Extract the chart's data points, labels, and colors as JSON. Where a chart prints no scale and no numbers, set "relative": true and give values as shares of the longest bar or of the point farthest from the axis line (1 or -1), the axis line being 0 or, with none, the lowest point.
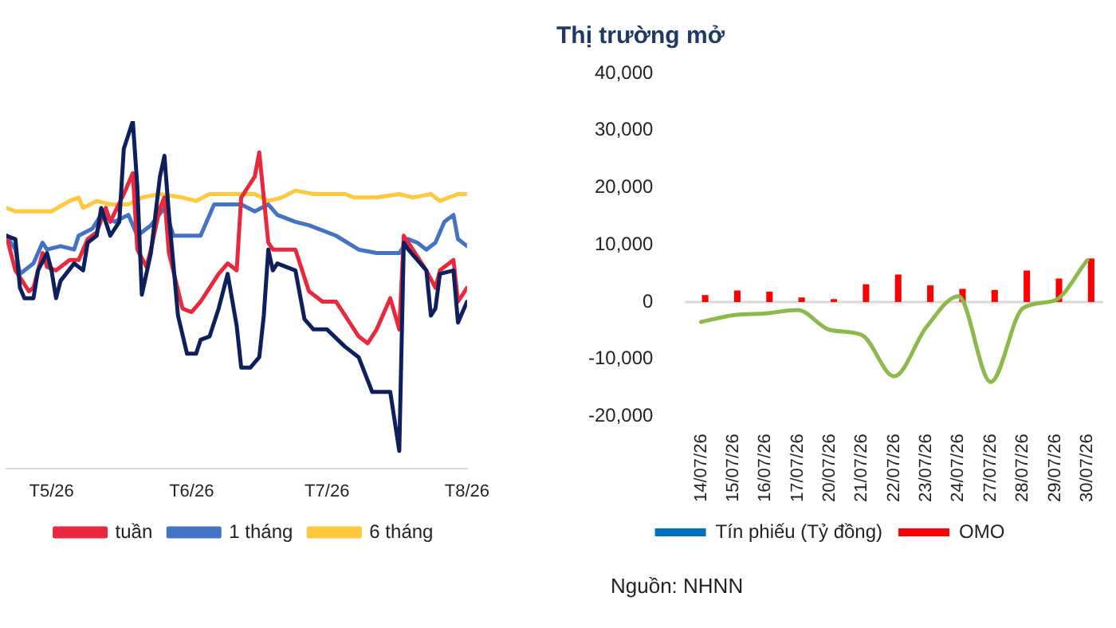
{
  "chart_data": [
    {
      "type": "line",
      "relative": true,
      "xlim": [
        "2026-04-21",
        "2026-08-01"
      ],
      "xticks": [
        {
          "value": "2026-05-01",
          "label": "T5/26"
        },
        {
          "value": "2026-06-01",
          "label": "T6/26"
        },
        {
          "value": "2026-07-01",
          "label": "T7/26"
        },
        {
          "value": "2026-08-01",
          "label": "T8/26"
        }
      ],
      "grid": false,
      "legend": "bottom",
      "marker": "none",
      "line_style": "solid",
      "series": [
        {
          "color": "#0d1f5c",
          "x": [
            "2026-04-21",
            "2026-04-23",
            "2026-04-24",
            "2026-04-25",
            "2026-04-27",
            "2026-04-28",
            "2026-04-30",
            "2026-05-01",
            "2026-05-02",
            "2026-05-03",
            "2026-05-06",
            "2026-05-08",
            "2026-05-09",
            "2026-05-11",
            "2026-05-12",
            "2026-05-14",
            "2026-05-16",
            "2026-05-17",
            "2026-05-19",
            "2026-05-20",
            "2026-05-21",
            "2026-05-23",
            "2026-05-25",
            "2026-05-26",
            "2026-05-27",
            "2026-05-29",
            "2026-05-31",
            "2026-06-02",
            "2026-06-03",
            "2026-06-05",
            "2026-06-07",
            "2026-06-09",
            "2026-06-11",
            "2026-06-12",
            "2026-06-14",
            "2026-06-16",
            "2026-06-17",
            "2026-06-18",
            "2026-06-19",
            "2026-06-20",
            "2026-06-24",
            "2026-06-26",
            "2026-06-28",
            "2026-07-01",
            "2026-07-05",
            "2026-07-08",
            "2026-07-11",
            "2026-07-15",
            "2026-07-17",
            "2026-07-18",
            "2026-07-19",
            "2026-07-23",
            "2026-07-24",
            "2026-07-25",
            "2026-07-26",
            "2026-07-29",
            "2026-07-30",
            "2026-08-01"
          ],
          "values": [
            0.67,
            0.66,
            0.52,
            0.49,
            0.49,
            0.57,
            0.62,
            0.57,
            0.49,
            0.54,
            0.59,
            0.57,
            0.65,
            0.67,
            0.75,
            0.67,
            0.71,
            0.92,
            1.0,
            0.81,
            0.5,
            0.62,
            0.84,
            0.9,
            0.73,
            0.44,
            0.33,
            0.33,
            0.37,
            0.38,
            0.46,
            0.56,
            0.41,
            0.29,
            0.29,
            0.32,
            0.44,
            0.63,
            0.57,
            0.59,
            0.57,
            0.43,
            0.4,
            0.4,
            0.35,
            0.32,
            0.22,
            0.22,
            0.05,
            0.65,
            0.63,
            0.57,
            0.44,
            0.46,
            0.56,
            0.57,
            0.42,
            0.48
          ]
        },
        {
          "name": "tuần",
          "color": "#e8283c",
          "x": [
            "2026-04-21",
            "2026-04-23",
            "2026-04-26",
            "2026-04-27",
            "2026-04-29",
            "2026-04-30",
            "2026-05-02",
            "2026-05-05",
            "2026-05-07",
            "2026-05-09",
            "2026-05-11",
            "2026-05-13",
            "2026-05-14",
            "2026-05-17",
            "2026-05-19",
            "2026-05-20",
            "2026-05-22",
            "2026-05-23",
            "2026-05-25",
            "2026-05-26",
            "2026-05-27",
            "2026-05-30",
            "2026-06-01",
            "2026-06-03",
            "2026-06-07",
            "2026-06-09",
            "2026-06-11",
            "2026-06-12",
            "2026-06-15",
            "2026-06-16",
            "2026-06-18",
            "2026-06-19",
            "2026-06-21",
            "2026-06-24",
            "2026-06-27",
            "2026-06-30",
            "2026-07-03",
            "2026-07-05",
            "2026-07-08",
            "2026-07-10",
            "2026-07-12",
            "2026-07-15",
            "2026-07-17",
            "2026-07-18",
            "2026-07-20",
            "2026-07-23",
            "2026-07-25",
            "2026-07-26",
            "2026-07-29",
            "2026-07-30",
            "2026-08-01"
          ],
          "values": [
            0.67,
            0.57,
            0.51,
            0.52,
            0.62,
            0.58,
            0.57,
            0.6,
            0.6,
            0.66,
            0.68,
            0.75,
            0.71,
            0.79,
            0.85,
            0.63,
            0.58,
            0.63,
            0.75,
            0.78,
            0.62,
            0.46,
            0.45,
            0.48,
            0.56,
            0.59,
            0.57,
            0.78,
            0.84,
            0.91,
            0.65,
            0.63,
            0.63,
            0.63,
            0.51,
            0.48,
            0.48,
            0.44,
            0.38,
            0.36,
            0.4,
            0.49,
            0.4,
            0.67,
            0.63,
            0.57,
            0.52,
            0.57,
            0.6,
            0.48,
            0.52
          ]
        },
        {
          "name": "1 tháng",
          "color": "#4472c4",
          "x": [
            "2026-04-21",
            "2026-04-23",
            "2026-04-24",
            "2026-04-27",
            "2026-04-29",
            "2026-04-30",
            "2026-05-03",
            "2026-05-06",
            "2026-05-07",
            "2026-05-10",
            "2026-05-12",
            "2026-05-15",
            "2026-05-18",
            "2026-05-20",
            "2026-05-23",
            "2026-05-26",
            "2026-05-28",
            "2026-06-03",
            "2026-06-06",
            "2026-06-12",
            "2026-06-15",
            "2026-06-18",
            "2026-06-20",
            "2026-06-24",
            "2026-06-27",
            "2026-07-03",
            "2026-07-08",
            "2026-07-12",
            "2026-07-14",
            "2026-07-17",
            "2026-07-19",
            "2026-07-21",
            "2026-07-23",
            "2026-07-25",
            "2026-07-27",
            "2026-07-29",
            "2026-07-30",
            "2026-08-01"
          ],
          "values": [
            0.67,
            0.63,
            0.56,
            0.59,
            0.65,
            0.63,
            0.64,
            0.63,
            0.67,
            0.69,
            0.73,
            0.71,
            0.73,
            0.67,
            0.7,
            0.75,
            0.67,
            0.67,
            0.76,
            0.76,
            0.74,
            0.76,
            0.73,
            0.71,
            0.7,
            0.67,
            0.63,
            0.62,
            0.62,
            0.62,
            0.66,
            0.65,
            0.63,
            0.65,
            0.71,
            0.73,
            0.66,
            0.64
          ]
        },
        {
          "name": "6 tháng",
          "color": "#ffc83d",
          "x": [
            "2026-04-21",
            "2026-04-23",
            "2026-05-01",
            "2026-05-05",
            "2026-05-07",
            "2026-05-08",
            "2026-05-11",
            "2026-05-14",
            "2026-05-18",
            "2026-05-21",
            "2026-05-25",
            "2026-05-30",
            "2026-06-02",
            "2026-06-05",
            "2026-06-09",
            "2026-06-12",
            "2026-06-15",
            "2026-06-18",
            "2026-06-21",
            "2026-06-24",
            "2026-06-28",
            "2026-07-01",
            "2026-07-05",
            "2026-07-07",
            "2026-07-12",
            "2026-07-17",
            "2026-07-20",
            "2026-07-24",
            "2026-07-26",
            "2026-07-30",
            "2026-08-01"
          ],
          "values": [
            0.75,
            0.74,
            0.74,
            0.77,
            0.78,
            0.75,
            0.77,
            0.76,
            0.76,
            0.78,
            0.79,
            0.78,
            0.77,
            0.79,
            0.79,
            0.79,
            0.79,
            0.77,
            0.78,
            0.8,
            0.79,
            0.79,
            0.79,
            0.78,
            0.78,
            0.79,
            0.78,
            0.79,
            0.77,
            0.79,
            0.79
          ]
        }
      ]
    },
    {
      "type": "bar",
      "title": "Thị trường mở",
      "categories": [
        "14/07/26",
        "15/07/26",
        "16/07/26",
        "17/07/26",
        "20/07/26",
        "21/07/26",
        "22/07/26",
        "23/07/26",
        "24/07/26",
        "27/07/26",
        "28/07/26",
        "29/07/26",
        "30/07/26"
      ],
      "ylim": [
        -20000,
        40000
      ],
      "yticks": [
        {
          "value": -20000,
          "label": "-20,000"
        },
        {
          "value": -10000,
          "label": "-10,000"
        },
        {
          "value": 0,
          "label": "0"
        },
        {
          "value": 10000,
          "label": "10,000"
        },
        {
          "value": 20000,
          "label": "20,000"
        },
        {
          "value": 30000,
          "label": "30,000"
        },
        {
          "value": 40000,
          "label": "40,000"
        }
      ],
      "grid": false,
      "legend": "bottom",
      "ref_lines": [
        {
          "axis": "y",
          "value": 0,
          "color": "#d9d9d9"
        }
      ],
      "annotations": [
        "Nguồn: NHNN"
      ],
      "series": [
        {
          "name": "Tín phiếu (Tỷ đồng)",
          "color": "#0070c0",
          "values": [
            0,
            0,
            0,
            0,
            0,
            0,
            0,
            0,
            0,
            0,
            0,
            0,
            0
          ]
        },
        {
          "name": "OMO",
          "color": "#ff0000",
          "values": [
            1200,
            2000,
            1800,
            800,
            500,
            3100,
            4800,
            2900,
            2300,
            2100,
            5500,
            4100,
            7600
          ]
        },
        {
          "type": "line",
          "color": "#8db94b",
          "values": [
            -3500,
            -2300,
            -2000,
            -1400,
            -4900,
            -5800,
            -13000,
            -4400,
            1000,
            -14000,
            -1100,
            300,
            7300
          ]
        }
      ]
    }
  ]
}
